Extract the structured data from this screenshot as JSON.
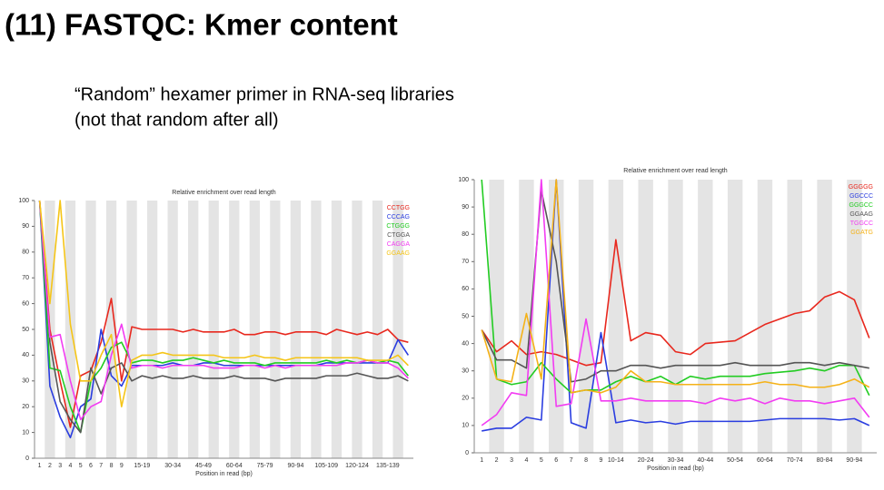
{
  "title": "(11) FASTQC: Kmer content",
  "subtitle_lines": [
    "“Random” hexamer primer in RNA-seq libraries",
    "(not that random after all)"
  ],
  "chart_data": [
    {
      "type": "line",
      "title": "Relative enrichment over read length",
      "xlabel": "Position in read (bp)",
      "categories": [
        "1",
        "2",
        "3",
        "4",
        "5",
        "6",
        "7",
        "8",
        "9",
        null,
        "15-19",
        null,
        null,
        "30-34",
        null,
        null,
        "45-49",
        null,
        null,
        "60-64",
        null,
        null,
        "75-79",
        null,
        null,
        "90-94",
        null,
        null,
        "105-109",
        null,
        null,
        "120-124",
        null,
        null,
        "135-139",
        null,
        null
      ],
      "ylim": [
        0,
        100
      ],
      "yticks": [
        0,
        10,
        20,
        30,
        40,
        50,
        60,
        70,
        80,
        90,
        100
      ],
      "grid": "alternating-bands",
      "legend": "top-right",
      "series": [
        {
          "name": "CCTGG",
          "color": "#e8281e",
          "values": [
            100,
            50,
            30,
            12,
            32,
            34,
            45,
            62,
            30,
            51,
            50,
            50,
            50,
            50,
            49,
            50,
            49,
            49,
            49,
            50,
            48,
            48,
            49,
            49,
            48,
            49,
            49,
            49,
            48,
            50,
            49,
            48,
            49,
            48,
            50,
            46,
            45
          ]
        },
        {
          "name": "CCCAG",
          "color": "#2a3de0",
          "values": [
            100,
            28,
            16,
            8,
            20,
            23,
            50,
            32,
            28,
            36,
            36,
            36,
            36,
            37,
            36,
            36,
            37,
            37,
            36,
            36,
            36,
            36,
            36,
            36,
            36,
            36,
            36,
            36,
            37,
            37,
            37,
            37,
            37,
            37,
            37,
            46,
            40
          ]
        },
        {
          "name": "CTGGG",
          "color": "#22cc22",
          "values": [
            100,
            35,
            34,
            20,
            10,
            30,
            35,
            43,
            45,
            37,
            38,
            38,
            37,
            38,
            38,
            39,
            38,
            37,
            38,
            37,
            37,
            37,
            36,
            37,
            37,
            37,
            37,
            37,
            38,
            37,
            38,
            37,
            38,
            37,
            38,
            37,
            32
          ]
        },
        {
          "name": "CTGGA",
          "color": "#555555",
          "values": [
            100,
            45,
            22,
            15,
            10,
            35,
            25,
            35,
            37,
            30,
            32,
            31,
            32,
            31,
            31,
            32,
            31,
            31,
            31,
            32,
            31,
            31,
            31,
            30,
            31,
            31,
            31,
            31,
            32,
            32,
            32,
            33,
            32,
            31,
            31,
            32,
            30
          ]
        },
        {
          "name": "CAGGA",
          "color": "#f23cf2",
          "values": [
            100,
            47,
            48,
            30,
            15,
            20,
            22,
            40,
            52,
            35,
            36,
            36,
            35,
            36,
            36,
            36,
            36,
            35,
            35,
            35,
            36,
            36,
            35,
            36,
            35,
            36,
            36,
            36,
            36,
            36,
            37,
            37,
            38,
            37,
            37,
            35,
            31
          ]
        },
        {
          "name": "GGAAG",
          "color": "#f5c518",
          "values": [
            100,
            60,
            100,
            52,
            30,
            30,
            40,
            48,
            20,
            38,
            40,
            40,
            41,
            40,
            40,
            40,
            40,
            40,
            39,
            39,
            39,
            40,
            39,
            39,
            38,
            39,
            39,
            39,
            39,
            39,
            39,
            39,
            38,
            38,
            38,
            40,
            36
          ]
        }
      ]
    },
    {
      "type": "line",
      "title": "Relative enrichment over read length",
      "xlabel": "Position in read (bp)",
      "categories": [
        "1",
        "2",
        "3",
        "4",
        "5",
        "6",
        "7",
        "8",
        "9",
        "10-14",
        null,
        "20-24",
        null,
        "30-34",
        null,
        "40-44",
        null,
        "50-54",
        null,
        "60-64",
        null,
        "70-74",
        null,
        "80-84",
        null,
        "90-94",
        null
      ],
      "ylim": [
        0,
        100
      ],
      "yticks": [
        0,
        10,
        20,
        30,
        40,
        50,
        60,
        70,
        80,
        90,
        100
      ],
      "grid": "alternating-bands",
      "legend": "top-right",
      "series": [
        {
          "name": "GGGGG",
          "color": "#e8281e",
          "values": [
            45,
            37,
            41,
            36,
            37,
            36,
            34,
            32,
            33,
            78,
            41,
            44,
            43,
            37,
            36,
            40,
            40.5,
            41,
            44,
            47,
            49,
            51,
            52,
            57,
            59,
            56,
            42
          ]
        },
        {
          "name": "GGCCC",
          "color": "#2a3de0",
          "values": [
            8,
            9,
            9,
            13,
            12,
            100,
            11,
            9,
            44,
            11,
            12,
            11,
            11.5,
            10.5,
            11.5,
            11.5,
            11.5,
            11.5,
            11.5,
            12,
            12.5,
            12.5,
            12.5,
            12.5,
            12,
            12.5,
            10
          ]
        },
        {
          "name": "GGGCC",
          "color": "#22cc22",
          "values": [
            100,
            27,
            25,
            26,
            33,
            27,
            22,
            23,
            23,
            26,
            28,
            26,
            28,
            25,
            28,
            27,
            28,
            28,
            28,
            29,
            29.5,
            30,
            31,
            30,
            32,
            32,
            21
          ]
        },
        {
          "name": "GGAAG",
          "color": "#555555",
          "values": [
            45,
            34,
            34,
            31,
            96,
            70,
            26,
            27,
            30,
            30,
            32,
            32,
            31,
            32,
            32,
            32,
            32,
            33,
            32,
            32,
            32,
            33,
            33,
            32,
            33,
            32,
            31
          ]
        },
        {
          "name": "TGGCC",
          "color": "#f23cf2",
          "values": [
            10,
            14,
            22,
            21,
            100,
            17,
            18,
            49,
            19,
            19,
            20,
            19,
            19,
            19,
            19,
            18,
            20,
            19,
            20,
            18,
            20,
            19,
            19,
            18,
            19,
            20,
            13
          ]
        },
        {
          "name": "GGATG",
          "color": "#f5b218",
          "values": [
            45,
            27,
            26,
            51,
            27,
            100,
            22,
            23,
            22,
            24,
            30,
            26,
            26,
            25,
            25,
            25,
            25,
            25,
            25,
            26,
            25,
            25,
            24,
            24,
            25,
            27,
            24
          ]
        }
      ]
    }
  ]
}
